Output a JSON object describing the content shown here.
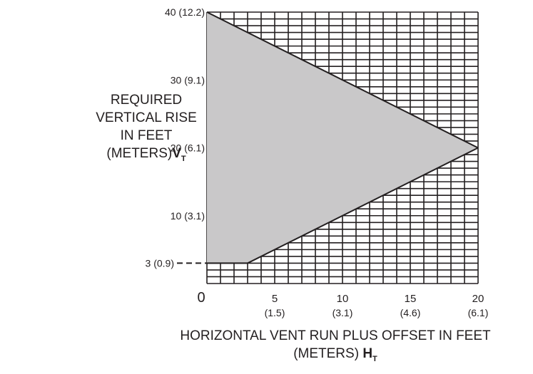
{
  "chart_data": {
    "type": "area",
    "x_ticks": [
      {
        "value": 0,
        "label": "0",
        "sub": ""
      },
      {
        "value": 5,
        "label": "5",
        "sub": "(1.5)"
      },
      {
        "value": 10,
        "label": "10",
        "sub": "(3.1)"
      },
      {
        "value": 15,
        "label": "15",
        "sub": "(4.6)"
      },
      {
        "value": 20,
        "label": "20",
        "sub": "(6.1)"
      }
    ],
    "y_ticks": [
      {
        "value": 3,
        "label": "3 (0.9)"
      },
      {
        "value": 10,
        "label": "10 (3.1)"
      },
      {
        "value": 20,
        "label": "20 (6.1)"
      },
      {
        "value": 30,
        "label": "30 (9.1)"
      },
      {
        "value": 40,
        "label": "40 (12.2)"
      }
    ],
    "xlim": [
      0,
      20
    ],
    "ylim": [
      0,
      40
    ],
    "grid": true,
    "shaded_region": [
      [
        0,
        40
      ],
      [
        20,
        20
      ],
      [
        3,
        3
      ],
      [
        0,
        3
      ]
    ],
    "boundary_lines": [
      {
        "points": [
          [
            0,
            40
          ],
          [
            20,
            20
          ]
        ]
      },
      {
        "points": [
          [
            3,
            3
          ],
          [
            20,
            20
          ]
        ]
      },
      {
        "points": [
          [
            0,
            3
          ],
          [
            3,
            3
          ]
        ]
      }
    ],
    "colors": {
      "shade": "#c9c8c9",
      "line": "#231f20"
    }
  },
  "labels": {
    "y_line1": "REQUIRED",
    "y_line2": "VERTICAL RISE",
    "y_line3": "IN FEET",
    "y_line4": "(METERS)",
    "y_symbol": "V",
    "y_symbol_sub": "T",
    "x_line1": "HORIZONTAL VENT RUN PLUS OFFSET IN FEET",
    "x_line2": "(METERS) ",
    "x_symbol": "H",
    "x_symbol_sub": "T"
  }
}
